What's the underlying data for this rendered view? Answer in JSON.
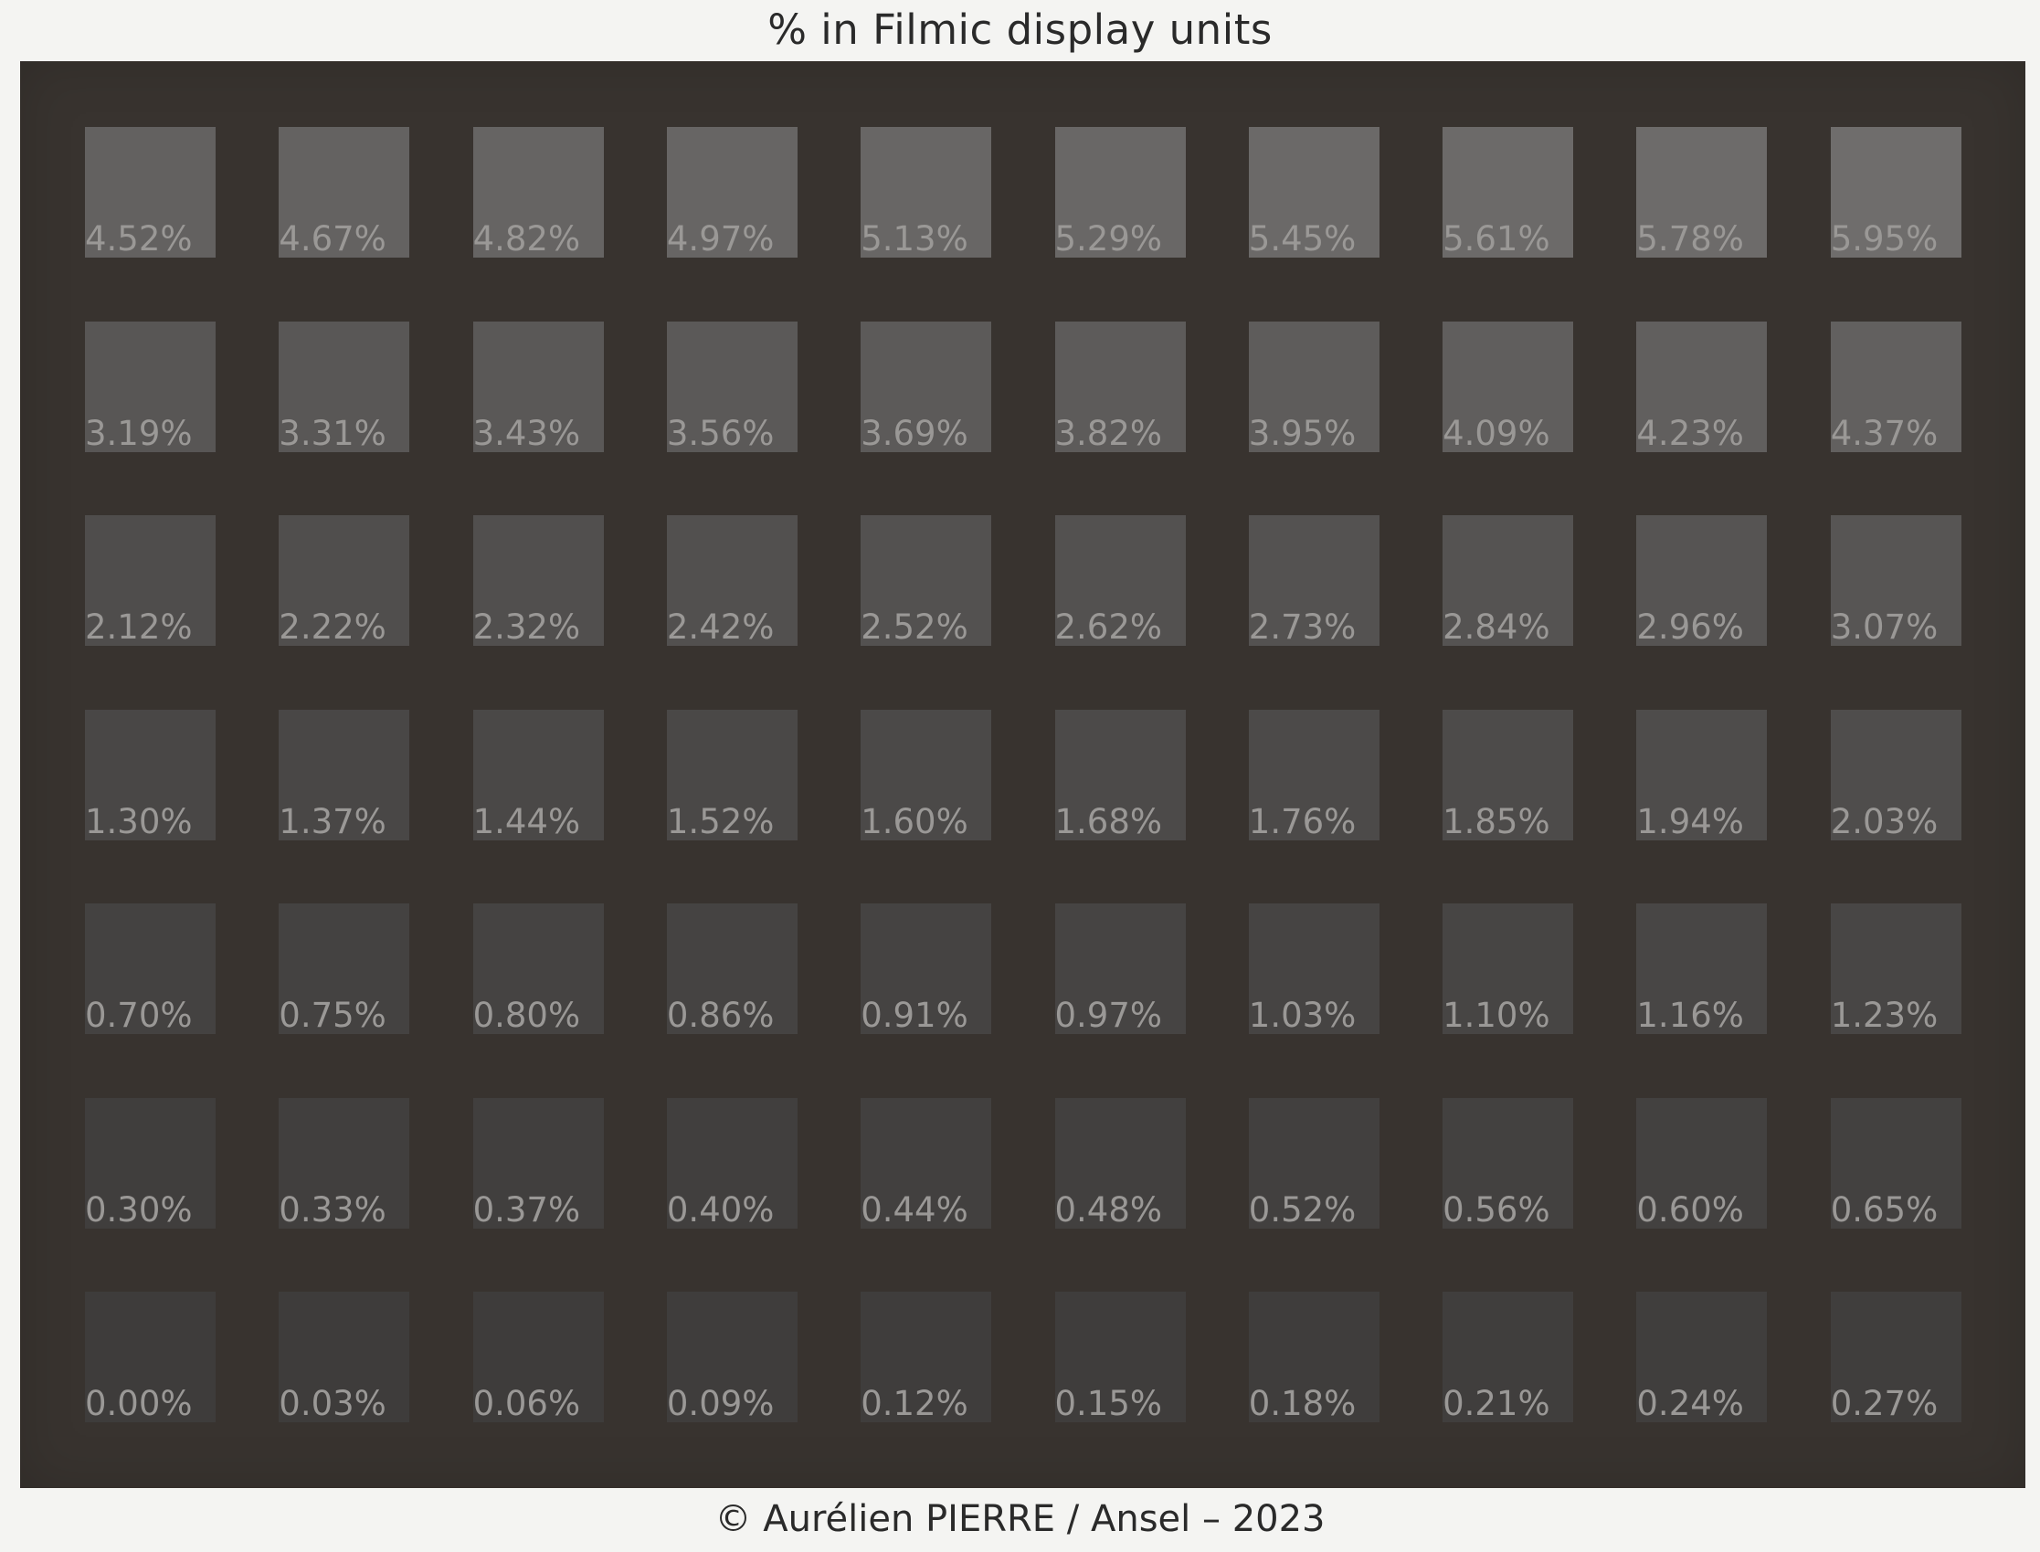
{
  "title": "% in Filmic display units",
  "footer": "© Aurélien PIERRE / Ansel – 2023",
  "colors": {
    "paper": "#f4f4f2",
    "board": "#38332f",
    "label": "#9a9896"
  },
  "grid": {
    "rows": [
      [
        "4.52%",
        "4.67%",
        "4.82%",
        "4.97%",
        "5.13%",
        "5.29%",
        "5.45%",
        "5.61%",
        "5.78%",
        "5.95%"
      ],
      [
        "3.19%",
        "3.31%",
        "3.43%",
        "3.56%",
        "3.69%",
        "3.82%",
        "3.95%",
        "4.09%",
        "4.23%",
        "4.37%"
      ],
      [
        "2.12%",
        "2.22%",
        "2.32%",
        "2.42%",
        "2.52%",
        "2.62%",
        "2.73%",
        "2.84%",
        "2.96%",
        "3.07%"
      ],
      [
        "1.30%",
        "1.37%",
        "1.44%",
        "1.52%",
        "1.60%",
        "1.68%",
        "1.76%",
        "1.85%",
        "1.94%",
        "2.03%"
      ],
      [
        "0.70%",
        "0.75%",
        "0.80%",
        "0.86%",
        "0.91%",
        "0.97%",
        "1.03%",
        "1.10%",
        "1.16%",
        "1.23%"
      ],
      [
        "0.30%",
        "0.33%",
        "0.37%",
        "0.40%",
        "0.44%",
        "0.48%",
        "0.52%",
        "0.56%",
        "0.60%",
        "0.65%"
      ],
      [
        "0.00%",
        "0.03%",
        "0.06%",
        "0.09%",
        "0.12%",
        "0.15%",
        "0.18%",
        "0.21%",
        "0.24%",
        "0.27%"
      ]
    ]
  }
}
